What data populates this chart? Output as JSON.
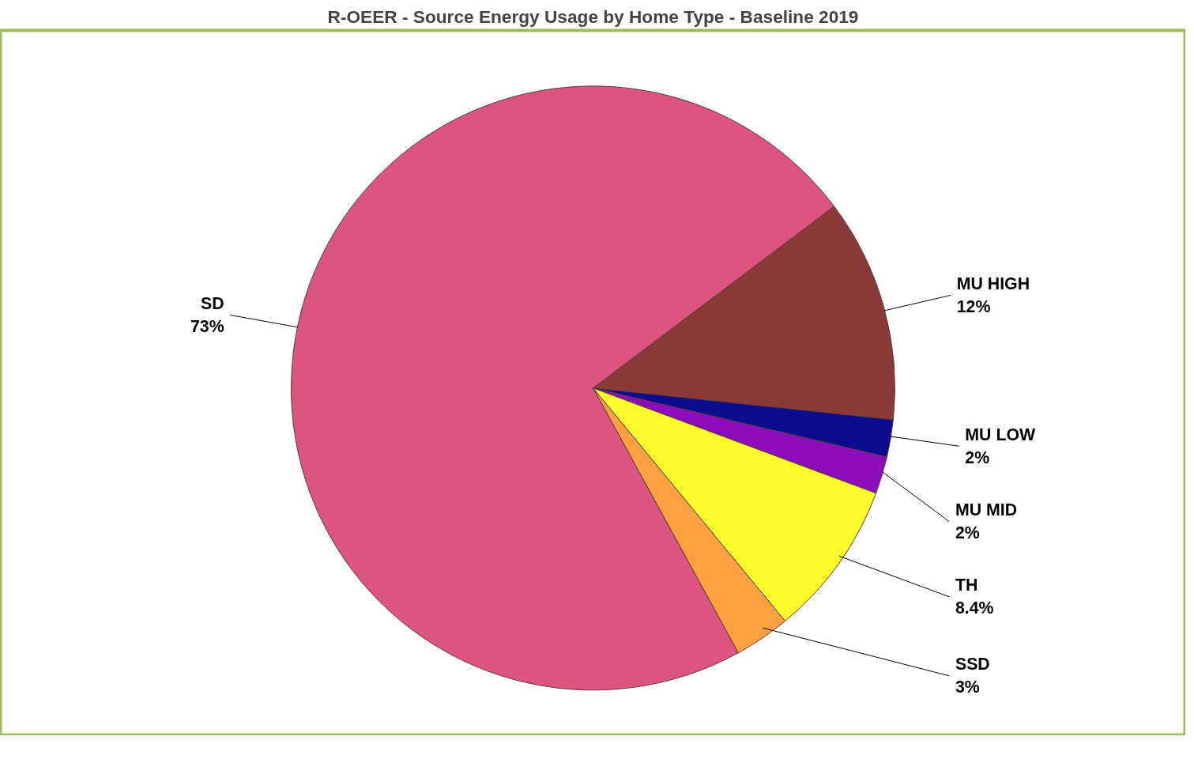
{
  "chart_data": {
    "type": "pie",
    "title": "R-OEER - Source Energy Usage by Home Type - Baseline 2019",
    "categories": [
      "MU HIGH",
      "MU LOW",
      "MU MID",
      "TH",
      "SSD",
      "SD"
    ],
    "values": [
      12,
      2,
      2,
      8.4,
      3,
      73
    ],
    "colors": [
      "#8b3a3a",
      "#0c0c8c",
      "#8c0cbc",
      "#fcfc2c",
      "#fca040",
      "#dc5480"
    ],
    "value_labels": [
      "12%",
      "2%",
      "2%",
      "8.4%",
      "3%",
      "73%"
    ],
    "legend": false
  }
}
